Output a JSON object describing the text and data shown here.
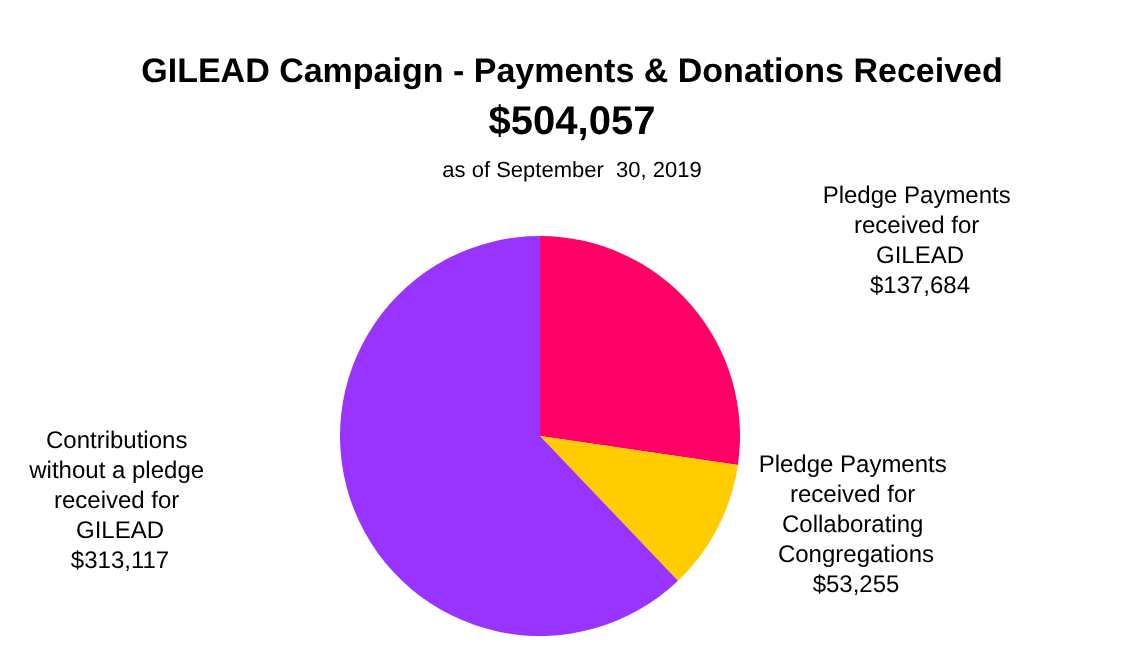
{
  "chart_data": {
    "type": "pie",
    "title": "GILEAD Campaign - Payments & Donations Received",
    "subtitle": "$504,057",
    "annotations": [
      "as of September  30, 2019"
    ],
    "categories": [
      "Pledge Payments received for GILEAD",
      "Pledge Payments received for Collaborating Congregations",
      "Contributions without a pledge received for GILEAD"
    ],
    "values": [
      137684,
      53255,
      313117
    ],
    "value_labels": [
      "$137,684",
      "$53,255",
      "$313,117"
    ],
    "colors": [
      "#ff0066",
      "#ffcc00",
      "#9933ff"
    ],
    "legend": false
  }
}
